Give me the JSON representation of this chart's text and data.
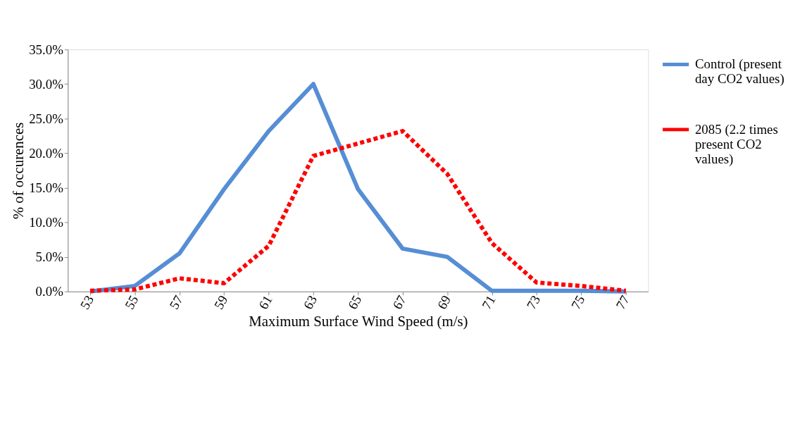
{
  "chart_data": {
    "type": "line",
    "xlabel": "Maximum Surface Wind Speed (m/s)",
    "ylabel": "% of occurences",
    "categories": [
      "53",
      "55",
      "57",
      "59",
      "61",
      "63",
      "65",
      "67",
      "69",
      "71",
      "73",
      "75",
      "77"
    ],
    "series": [
      {
        "name": "Control (present day CO2 values)",
        "color": "#558ed5",
        "line_style": "solid",
        "values": [
          0.0,
          0.8,
          5.5,
          14.8,
          23.2,
          30.0,
          14.8,
          6.2,
          5.0,
          0.1,
          0.1,
          0.1,
          0.0
        ]
      },
      {
        "name": "2085 (2.2 times present CO2 values)",
        "color": "#ff0000",
        "line_style": "dashed",
        "values": [
          0.1,
          0.3,
          1.9,
          1.2,
          6.6,
          19.6,
          21.4,
          23.2,
          17.0,
          7.0,
          1.3,
          0.8,
          0.1
        ]
      }
    ],
    "ylim": [
      0,
      35
    ],
    "yticks": [
      {
        "value": 0,
        "label": "0.0%"
      },
      {
        "value": 5,
        "label": "5.0%"
      },
      {
        "value": 10,
        "label": "10.0%"
      },
      {
        "value": 15,
        "label": "15.0%"
      },
      {
        "value": 20,
        "label": "20.0%"
      },
      {
        "value": 25,
        "label": "25.0%"
      },
      {
        "value": 30,
        "label": "30.0%"
      },
      {
        "value": 35,
        "label": "35.0%"
      }
    ],
    "grid": false,
    "legend": "right",
    "marker": "none"
  }
}
